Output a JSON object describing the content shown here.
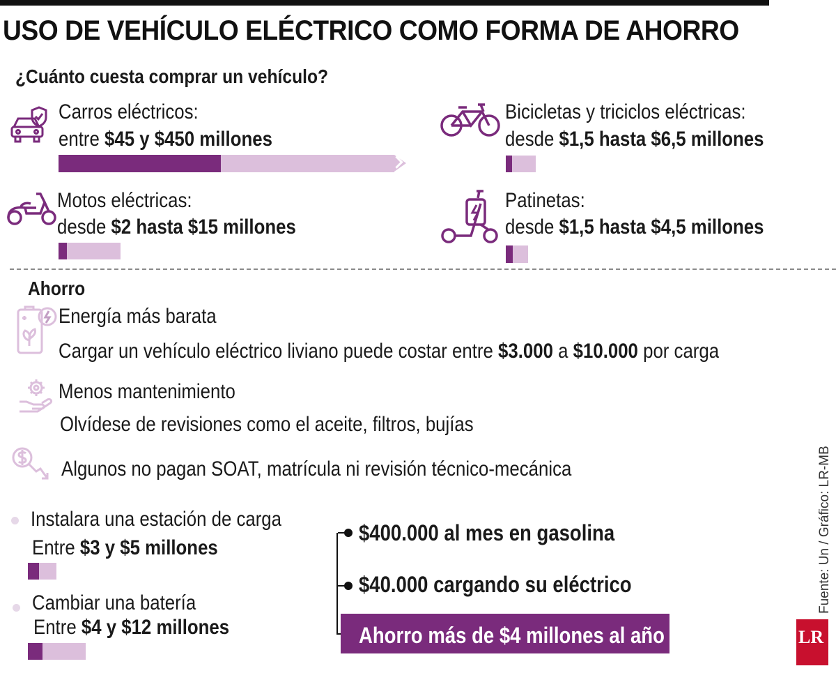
{
  "title": "USO DE VEHÍCULO ELÉCTRICO COMO FORMA DE AHORRO",
  "subtitle": "¿Cuánto cuesta comprar un vehículo?",
  "vehicles": [
    {
      "label": "Carros eléctricos:",
      "prefix": "entre",
      "price": "$45 y $450 millones",
      "icon": "car-shield-icon",
      "range_fraction": 0.46
    },
    {
      "label": "Bicicletas y triciclos eléctricas:",
      "prefix": "desde",
      "price": "$1,5 hasta $6,5 millones",
      "icon": "bicycle-icon",
      "range_fraction": 0.2
    },
    {
      "label": "Motos eléctricas:",
      "prefix": "desde",
      "price": "$2 hasta $15 millones",
      "icon": "scooter-moto-icon",
      "range_fraction": 0.13
    },
    {
      "label": "Patinetas:",
      "prefix": "desde",
      "price": "$1,5 hasta $4,5 millones",
      "icon": "kick-scooter-icon",
      "range_fraction": 0.35
    }
  ],
  "savings_heading": "Ahorro",
  "energy": {
    "title": "Energía más barata",
    "text_before": "Cargar un vehículo eléctrico liviano puede costar entre",
    "amount_low": "$3.000",
    "connector": "a",
    "amount_high": "$10.000",
    "text_after": "por carga",
    "icon": "phone-battery-leaf-icon"
  },
  "maintenance": {
    "title": "Menos mantenimiento",
    "text": "Olvídese de revisiones como el aceite, filtros, bujías",
    "icon": "hand-gear-icon"
  },
  "taxes": {
    "text": "Algunos no pagan SOAT, matrícula ni revisión técnico-mecánica",
    "icon": "dollar-down-arrow-icon"
  },
  "costs": [
    {
      "label": "Instalara una estación de carga",
      "prefix": "Entre",
      "price": "$3 y $5 millones",
      "range_fraction": 0.4
    },
    {
      "label": "Cambiar una batería",
      "prefix": "Entre",
      "price": "$4 y $12 millones",
      "range_fraction": 0.25
    }
  ],
  "comparison": {
    "gasoline": "$400.000 al mes en gasolina",
    "electric": "$40.000 cargando su eléctrico",
    "result": "Ahorro más de $4 millones al año"
  },
  "source": "Fuente: Un / Gráfico: LR-MB",
  "logo": "LR",
  "colors": {
    "accent": "#7a2b7c",
    "accent_light": "#dcbfdc",
    "icon": "#7a2b7c",
    "logo": "#c8102e"
  }
}
